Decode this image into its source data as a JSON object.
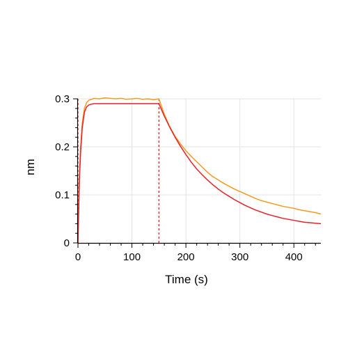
{
  "chart_data": {
    "type": "line",
    "title": "",
    "xlabel": "Time (s)",
    "ylabel": "nm",
    "xlim": [
      0,
      450
    ],
    "ylim": [
      0,
      0.3
    ],
    "x_ticks": [
      0,
      100,
      200,
      300,
      400
    ],
    "x_tick_labels": [
      "0",
      "100",
      "200",
      "300",
      "400"
    ],
    "y_ticks": [
      0,
      0.1,
      0.2,
      0.3
    ],
    "y_tick_labels": [
      "0",
      "0.1",
      "0.2",
      "0.3"
    ],
    "grid": true,
    "legend": "none",
    "vertical_markers": [
      0,
      150
    ],
    "colors": {
      "measured": "#f39a1e",
      "fit": "#e8202a",
      "marker": "#e8202a",
      "grid": "#e3e3e3"
    },
    "series": [
      {
        "style": "measured",
        "x": [
          0,
          2,
          5,
          8,
          12,
          16,
          20,
          25,
          30,
          40,
          50,
          60,
          70,
          80,
          90,
          100,
          110,
          120,
          130,
          140,
          150,
          160,
          170,
          180,
          190,
          200,
          210,
          220,
          230,
          240,
          250,
          260,
          270,
          280,
          290,
          300,
          310,
          320,
          330,
          340,
          350,
          360,
          370,
          380,
          390,
          400,
          410,
          420,
          430,
          440,
          450
        ],
        "y": [
          0.0,
          0.12,
          0.2,
          0.25,
          0.28,
          0.292,
          0.297,
          0.299,
          0.301,
          0.3,
          0.302,
          0.301,
          0.3,
          0.301,
          0.299,
          0.3,
          0.301,
          0.299,
          0.3,
          0.298,
          0.3,
          0.268,
          0.242,
          0.222,
          0.206,
          0.192,
          0.18,
          0.169,
          0.158,
          0.147,
          0.138,
          0.131,
          0.124,
          0.118,
          0.112,
          0.107,
          0.102,
          0.097,
          0.092,
          0.088,
          0.085,
          0.082,
          0.079,
          0.076,
          0.074,
          0.072,
          0.069,
          0.067,
          0.065,
          0.063,
          0.06
        ]
      },
      {
        "style": "fit",
        "x": [
          0,
          1,
          2,
          3,
          5,
          8,
          12,
          16,
          20,
          25,
          30,
          40,
          50,
          75,
          100,
          125,
          150,
          160,
          170,
          180,
          190,
          200,
          210,
          220,
          230,
          240,
          250,
          260,
          270,
          280,
          290,
          300,
          310,
          320,
          330,
          340,
          350,
          360,
          370,
          380,
          390,
          400,
          410,
          420,
          430,
          440,
          450
        ],
        "y": [
          0.0,
          0.05,
          0.1,
          0.14,
          0.19,
          0.24,
          0.272,
          0.283,
          0.287,
          0.289,
          0.29,
          0.29,
          0.29,
          0.29,
          0.29,
          0.29,
          0.29,
          0.264,
          0.241,
          0.22,
          0.201,
          0.184,
          0.168,
          0.154,
          0.142,
          0.131,
          0.121,
          0.112,
          0.104,
          0.097,
          0.09,
          0.084,
          0.078,
          0.073,
          0.068,
          0.064,
          0.06,
          0.057,
          0.054,
          0.051,
          0.049,
          0.047,
          0.045,
          0.043,
          0.042,
          0.041,
          0.04
        ]
      }
    ]
  }
}
